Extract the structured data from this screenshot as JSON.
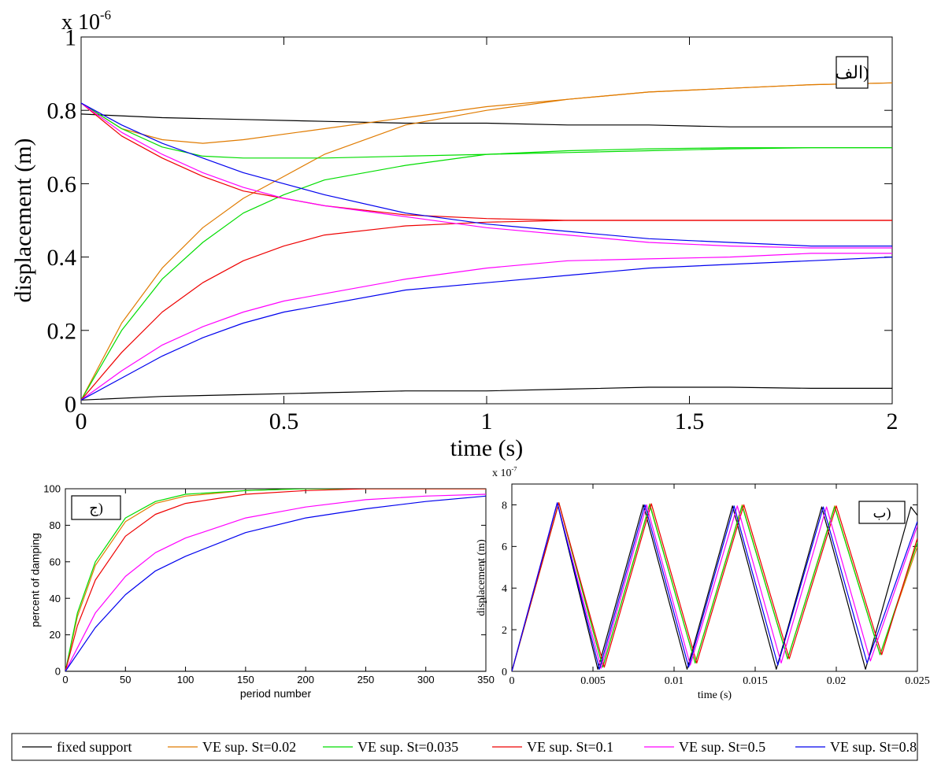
{
  "chart_data": [
    {
      "id": "main",
      "type": "line",
      "panel_label": "الف)",
      "xlabel": "time (s)",
      "ylabel": "displacement (m)",
      "exponent_label": "x 10",
      "exponent_power": "-6",
      "xlim": [
        0,
        2
      ],
      "ylim": [
        0,
        1
      ],
      "xticks": [
        "0",
        "0.5",
        "1",
        "1.5",
        "2"
      ],
      "yticks": [
        "0",
        "0.2",
        "0.4",
        "0.6",
        "0.8",
        "1"
      ],
      "series": [
        {
          "color": "#000000",
          "x": [
            0,
            0.2,
            0.4,
            0.6,
            0.8,
            1.0,
            1.2,
            1.4,
            1.6,
            1.8,
            2.0
          ],
          "y": [
            0.79,
            0.78,
            0.775,
            0.77,
            0.765,
            0.765,
            0.76,
            0.76,
            0.755,
            0.755,
            0.755
          ]
        },
        {
          "color": "#000000",
          "x": [
            0,
            0.2,
            0.4,
            0.6,
            0.8,
            1.0,
            1.2,
            1.4,
            1.6,
            1.8,
            2.0
          ],
          "y": [
            0.01,
            0.02,
            0.025,
            0.03,
            0.035,
            0.035,
            0.04,
            0.045,
            0.045,
            0.042,
            0.042
          ]
        },
        {
          "color": "#E07B00",
          "x": [
            0,
            0.1,
            0.2,
            0.3,
            0.4,
            0.6,
            0.8,
            1.0,
            1.2,
            1.4,
            1.6,
            1.8,
            2.0
          ],
          "y": [
            0.82,
            0.75,
            0.72,
            0.71,
            0.72,
            0.75,
            0.78,
            0.81,
            0.83,
            0.85,
            0.86,
            0.87,
            0.875
          ]
        },
        {
          "color": "#E07B00",
          "x": [
            0,
            0.1,
            0.2,
            0.3,
            0.4,
            0.5,
            0.6,
            0.8,
            1.0,
            1.2,
            1.4,
            1.6,
            1.8,
            2.0
          ],
          "y": [
            0.01,
            0.22,
            0.37,
            0.48,
            0.56,
            0.62,
            0.68,
            0.76,
            0.8,
            0.83,
            0.85,
            0.86,
            0.87,
            0.875
          ]
        },
        {
          "color": "#00DD00",
          "x": [
            0,
            0.1,
            0.2,
            0.3,
            0.4,
            0.6,
            0.8,
            1.0,
            1.2,
            1.4,
            1.6,
            1.8,
            2.0
          ],
          "y": [
            0.82,
            0.75,
            0.7,
            0.675,
            0.67,
            0.67,
            0.675,
            0.68,
            0.685,
            0.69,
            0.695,
            0.698,
            0.698
          ]
        },
        {
          "color": "#00DD00",
          "x": [
            0,
            0.1,
            0.2,
            0.3,
            0.4,
            0.5,
            0.6,
            0.8,
            1.0,
            1.2,
            1.4,
            1.6,
            1.8,
            2.0
          ],
          "y": [
            0.01,
            0.2,
            0.34,
            0.44,
            0.52,
            0.57,
            0.61,
            0.65,
            0.68,
            0.69,
            0.695,
            0.698,
            0.698,
            0.698
          ]
        },
        {
          "color": "#EE0000",
          "x": [
            0,
            0.1,
            0.2,
            0.3,
            0.4,
            0.5,
            0.6,
            0.8,
            1.0,
            1.2,
            1.4,
            2.0
          ],
          "y": [
            0.82,
            0.73,
            0.67,
            0.62,
            0.58,
            0.56,
            0.54,
            0.515,
            0.505,
            0.5,
            0.5,
            0.5
          ]
        },
        {
          "color": "#EE0000",
          "x": [
            0,
            0.1,
            0.2,
            0.3,
            0.4,
            0.5,
            0.6,
            0.8,
            1.0,
            1.2,
            1.4,
            2.0
          ],
          "y": [
            0.01,
            0.14,
            0.25,
            0.33,
            0.39,
            0.43,
            0.46,
            0.485,
            0.495,
            0.5,
            0.5,
            0.5
          ]
        },
        {
          "color": "#FF00FF",
          "x": [
            0,
            0.1,
            0.2,
            0.3,
            0.4,
            0.5,
            0.6,
            0.8,
            1.0,
            1.2,
            1.4,
            1.6,
            1.8,
            2.0
          ],
          "y": [
            0.82,
            0.74,
            0.68,
            0.63,
            0.59,
            0.56,
            0.54,
            0.51,
            0.48,
            0.46,
            0.44,
            0.43,
            0.425,
            0.425
          ]
        },
        {
          "color": "#FF00FF",
          "x": [
            0,
            0.1,
            0.2,
            0.3,
            0.4,
            0.5,
            0.6,
            0.8,
            1.0,
            1.2,
            1.4,
            1.6,
            1.8,
            2.0
          ],
          "y": [
            0.01,
            0.09,
            0.16,
            0.21,
            0.25,
            0.28,
            0.3,
            0.34,
            0.37,
            0.39,
            0.395,
            0.4,
            0.41,
            0.41
          ]
        },
        {
          "color": "#0000EE",
          "x": [
            0,
            0.1,
            0.2,
            0.3,
            0.4,
            0.5,
            0.6,
            0.8,
            1.0,
            1.2,
            1.4,
            1.6,
            1.8,
            2.0
          ],
          "y": [
            0.82,
            0.76,
            0.71,
            0.67,
            0.63,
            0.6,
            0.57,
            0.52,
            0.49,
            0.47,
            0.45,
            0.44,
            0.43,
            0.43
          ]
        },
        {
          "color": "#0000EE",
          "x": [
            0,
            0.1,
            0.2,
            0.3,
            0.4,
            0.5,
            0.6,
            0.8,
            1.0,
            1.2,
            1.4,
            1.6,
            1.8,
            2.0
          ],
          "y": [
            0.01,
            0.07,
            0.13,
            0.18,
            0.22,
            0.25,
            0.27,
            0.31,
            0.33,
            0.35,
            0.37,
            0.38,
            0.39,
            0.4
          ]
        }
      ]
    },
    {
      "id": "damping",
      "type": "line",
      "panel_label": "ج)",
      "xlabel": "period number",
      "ylabel": "percent of damping",
      "xlim": [
        0,
        350
      ],
      "ylim": [
        0,
        100
      ],
      "xticks": [
        "0",
        "50",
        "100",
        "150",
        "200",
        "250",
        "300",
        "350"
      ],
      "yticks": [
        "0",
        "20",
        "40",
        "60",
        "80",
        "100"
      ],
      "series": [
        {
          "color": "#000000",
          "x": [
            0,
            350
          ],
          "y": [
            0,
            0
          ]
        },
        {
          "color": "#E07B00",
          "x": [
            0,
            10,
            25,
            50,
            75,
            100,
            150,
            200,
            250,
            350
          ],
          "y": [
            0,
            30,
            58,
            82,
            92,
            96,
            99,
            100,
            100,
            100
          ]
        },
        {
          "color": "#00DD00",
          "x": [
            0,
            10,
            25,
            50,
            75,
            100,
            150,
            200,
            250,
            350
          ],
          "y": [
            0,
            32,
            60,
            84,
            93,
            97,
            99,
            100,
            100,
            100
          ]
        },
        {
          "color": "#EE0000",
          "x": [
            0,
            10,
            25,
            50,
            75,
            100,
            150,
            200,
            250,
            350
          ],
          "y": [
            0,
            25,
            50,
            74,
            86,
            92,
            97,
            99,
            100,
            100
          ]
        },
        {
          "color": "#FF00FF",
          "x": [
            0,
            25,
            50,
            75,
            100,
            150,
            200,
            250,
            300,
            350
          ],
          "y": [
            0,
            32,
            52,
            65,
            73,
            84,
            90,
            94,
            96,
            97
          ]
        },
        {
          "color": "#0000EE",
          "x": [
            0,
            25,
            50,
            75,
            100,
            150,
            200,
            250,
            300,
            350
          ],
          "y": [
            0,
            24,
            42,
            55,
            63,
            76,
            84,
            89,
            93,
            96
          ]
        }
      ]
    },
    {
      "id": "zigzag",
      "type": "line",
      "panel_label": "ب)",
      "xlabel": "time (s)",
      "ylabel": "displacement (m)",
      "exponent_label": "x 10",
      "exponent_power": "-7",
      "xlim": [
        0,
        0.025
      ],
      "ylim": [
        0,
        9
      ],
      "xticks": [
        "0",
        "0.005",
        "0.01",
        "0.015",
        "0.02",
        "0.025"
      ],
      "yticks": [
        "0",
        "2",
        "4",
        "6",
        "8"
      ],
      "series": [
        {
          "color": "#000000",
          "x": [
            0,
            0.0028,
            0.0053,
            0.0081,
            0.0108,
            0.0136,
            0.0163,
            0.0191,
            0.0218,
            0.0246,
            0.025
          ],
          "y": [
            0,
            8.1,
            0.1,
            8,
            0.1,
            7.95,
            0.1,
            7.9,
            0.1,
            7.9,
            7.5
          ]
        },
        {
          "color": "#E07B00",
          "x": [
            0,
            0.0029,
            0.0056,
            0.0085,
            0.0113,
            0.0142,
            0.017,
            0.0199,
            0.0227,
            0.025
          ],
          "y": [
            0,
            8.1,
            0.2,
            8.05,
            0.4,
            8,
            0.6,
            7.95,
            0.8,
            6
          ]
        },
        {
          "color": "#00DD00",
          "x": [
            0,
            0.0029,
            0.0056,
            0.0085,
            0.0113,
            0.0142,
            0.017,
            0.0199,
            0.0227,
            0.025
          ],
          "y": [
            0,
            8.1,
            0.2,
            8.0,
            0.4,
            7.95,
            0.6,
            7.9,
            0.8,
            6.2
          ]
        },
        {
          "color": "#EE0000",
          "x": [
            0,
            0.0029,
            0.0057,
            0.0086,
            0.0114,
            0.0143,
            0.0171,
            0.02,
            0.0228,
            0.025
          ],
          "y": [
            0,
            8.1,
            0.2,
            8.05,
            0.4,
            8,
            0.6,
            7.95,
            0.8,
            6.4
          ]
        },
        {
          "color": "#FF00FF",
          "x": [
            0,
            0.0028,
            0.0055,
            0.0083,
            0.011,
            0.0139,
            0.0166,
            0.0194,
            0.0221,
            0.025
          ],
          "y": [
            0,
            8.1,
            0.15,
            8,
            0.3,
            7.95,
            0.4,
            7.9,
            0.5,
            7
          ]
        },
        {
          "color": "#0000EE",
          "x": [
            0,
            0.0028,
            0.0054,
            0.0082,
            0.0109,
            0.0137,
            0.0164,
            0.0192,
            0.0219,
            0.025
          ],
          "y": [
            0,
            8.1,
            0.1,
            8,
            0.2,
            7.95,
            0.3,
            7.9,
            0.4,
            7.2
          ]
        }
      ]
    }
  ],
  "legend": {
    "entries": [
      {
        "label": "fixed support",
        "color": "#000000"
      },
      {
        "label": "VE sup. St=0.02",
        "color": "#E07B00"
      },
      {
        "label": "VE sup. St=0.035",
        "color": "#00DD00"
      },
      {
        "label": "VE sup. St=0.1",
        "color": "#EE0000"
      },
      {
        "label": "VE sup. St=0.5",
        "color": "#FF00FF"
      },
      {
        "label": "VE sup. St=0.8",
        "color": "#0000EE"
      }
    ]
  }
}
